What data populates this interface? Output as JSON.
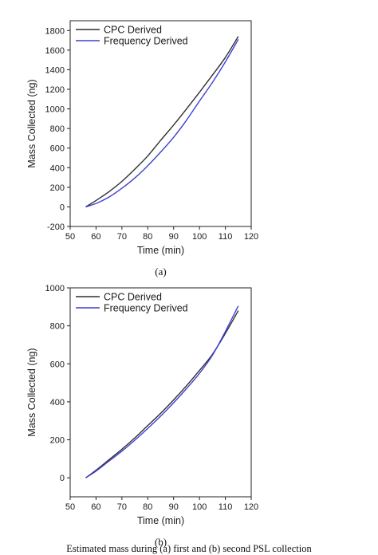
{
  "figure": {
    "caption": "Estimated mass during (a) first and (b) second PSL collection"
  },
  "chart_data": [
    {
      "type": "line",
      "panel_label": "(a)",
      "xlabel": "Time (min)",
      "ylabel": "Mass Collected (ng)",
      "xlim": [
        50,
        120
      ],
      "ylim": [
        -200,
        1900
      ],
      "xticks": [
        50,
        60,
        70,
        80,
        90,
        100,
        110,
        120
      ],
      "yticks": [
        -200,
        0,
        200,
        400,
        600,
        800,
        1000,
        1200,
        1400,
        1600,
        1800
      ],
      "grid": false,
      "legend_position": "top-left",
      "series": [
        {
          "name": "CPC Derived",
          "color": "#2f2f2f",
          "x": [
            56,
            60,
            65,
            70,
            75,
            80,
            85,
            90,
            95,
            100,
            105,
            110,
            115
          ],
          "y": [
            0,
            65,
            155,
            260,
            385,
            520,
            680,
            835,
            1000,
            1170,
            1345,
            1525,
            1740
          ]
        },
        {
          "name": "Frequency Derived",
          "color": "#3f3fd6",
          "x": [
            56,
            60,
            65,
            70,
            75,
            80,
            85,
            90,
            95,
            100,
            105,
            110,
            115
          ],
          "y": [
            0,
            35,
            100,
            190,
            295,
            420,
            560,
            710,
            885,
            1080,
            1270,
            1480,
            1710
          ]
        }
      ]
    },
    {
      "type": "line",
      "panel_label": "(b)",
      "xlabel": "Time (min)",
      "ylabel": "Mass Collected (ng)",
      "xlim": [
        50,
        120
      ],
      "ylim": [
        -100,
        1000
      ],
      "xticks": [
        50,
        60,
        70,
        80,
        90,
        100,
        110,
        120
      ],
      "yticks": [
        0,
        200,
        400,
        600,
        800,
        1000
      ],
      "grid": false,
      "legend_position": "top-left",
      "series": [
        {
          "name": "CPC Derived",
          "color": "#2f2f2f",
          "x": [
            56,
            60,
            65,
            70,
            75,
            80,
            85,
            90,
            95,
            100,
            105,
            110,
            115
          ],
          "y": [
            0,
            40,
            95,
            150,
            210,
            275,
            340,
            410,
            485,
            565,
            650,
            760,
            880
          ]
        },
        {
          "name": "Frequency Derived",
          "color": "#3f3fd6",
          "x": [
            56,
            60,
            65,
            70,
            75,
            80,
            85,
            90,
            95,
            100,
            105,
            110,
            115
          ],
          "y": [
            0,
            35,
            88,
            140,
            198,
            260,
            325,
            395,
            470,
            550,
            645,
            770,
            905
          ]
        }
      ]
    }
  ]
}
